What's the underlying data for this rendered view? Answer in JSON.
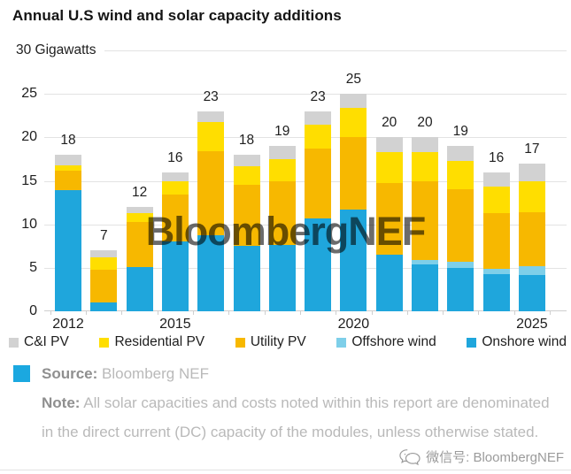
{
  "header": {
    "title": "Annual U.S wind and solar capacity additions"
  },
  "chart_data": {
    "type": "bar",
    "stacked": true,
    "title": "Annual U.S wind and solar capacity additions",
    "top_axis_label": "30 Gigawatts",
    "ylabel": "Gigawatts",
    "ylim": [
      0,
      30
    ],
    "yticks": [
      0,
      5,
      10,
      15,
      20,
      25
    ],
    "grid_values": [
      5,
      10,
      15,
      20,
      25,
      30
    ],
    "grid": true,
    "legend_position": "bottom",
    "categories": [
      "2012",
      "2013",
      "2014",
      "2015",
      "2016",
      "2017",
      "2018",
      "2019",
      "2020",
      "2021",
      "2022",
      "2023",
      "2024",
      "2025"
    ],
    "xtick_labels": {
      "0": "2012",
      "3": "2015",
      "8": "2020",
      "13": "2025"
    },
    "totals": [
      18,
      7,
      12,
      16,
      23,
      18,
      19,
      23,
      25,
      20,
      20,
      19,
      16,
      17
    ],
    "series": [
      {
        "name": "Onshore wind",
        "color": "#1FA6DC",
        "values": [
          13.9,
          1.0,
          5.1,
          8.0,
          8.7,
          7.5,
          7.6,
          10.7,
          11.7,
          6.5,
          5.4,
          5.0,
          4.3,
          4.2
        ]
      },
      {
        "name": "Offshore wind",
        "color": "#7ECFE9",
        "values": [
          0,
          0,
          0,
          0,
          0,
          0,
          0,
          0,
          0,
          0,
          0.5,
          0.7,
          0.6,
          1.0
        ]
      },
      {
        "name": "Utility PV",
        "color": "#F7B800",
        "values": [
          2.3,
          3.8,
          5.2,
          5.4,
          9.7,
          7.0,
          7.4,
          8.0,
          8.3,
          8.2,
          9.0,
          8.3,
          6.4,
          6.2
        ]
      },
      {
        "name": "Residential PV",
        "color": "#FFDE00",
        "values": [
          0.6,
          1.4,
          1.0,
          1.6,
          3.4,
          2.2,
          2.5,
          2.8,
          3.4,
          3.6,
          3.4,
          3.3,
          3.0,
          3.6
        ]
      },
      {
        "name": "C&I PV",
        "color": "#D2D2D2",
        "values": [
          1.2,
          0.8,
          0.7,
          1.0,
          1.2,
          1.3,
          1.5,
          1.5,
          1.6,
          1.7,
          1.7,
          1.7,
          1.7,
          2.0
        ]
      }
    ],
    "legend_order": [
      "C&I PV",
      "Residential PV",
      "Utility PV",
      "Offshore wind",
      "Onshore wind"
    ]
  },
  "watermark": {
    "text": "BloombergNEF"
  },
  "footer": {
    "source_label": "Source:",
    "source_text": "Bloomberg NEF",
    "note_label": "Note:",
    "note_text": "All solar capacities and costs noted within this report are denominated in the direct current (DC) capacity of the modules, unless otherwise stated.",
    "wechat_label": "微信号: BloombergNEF"
  }
}
